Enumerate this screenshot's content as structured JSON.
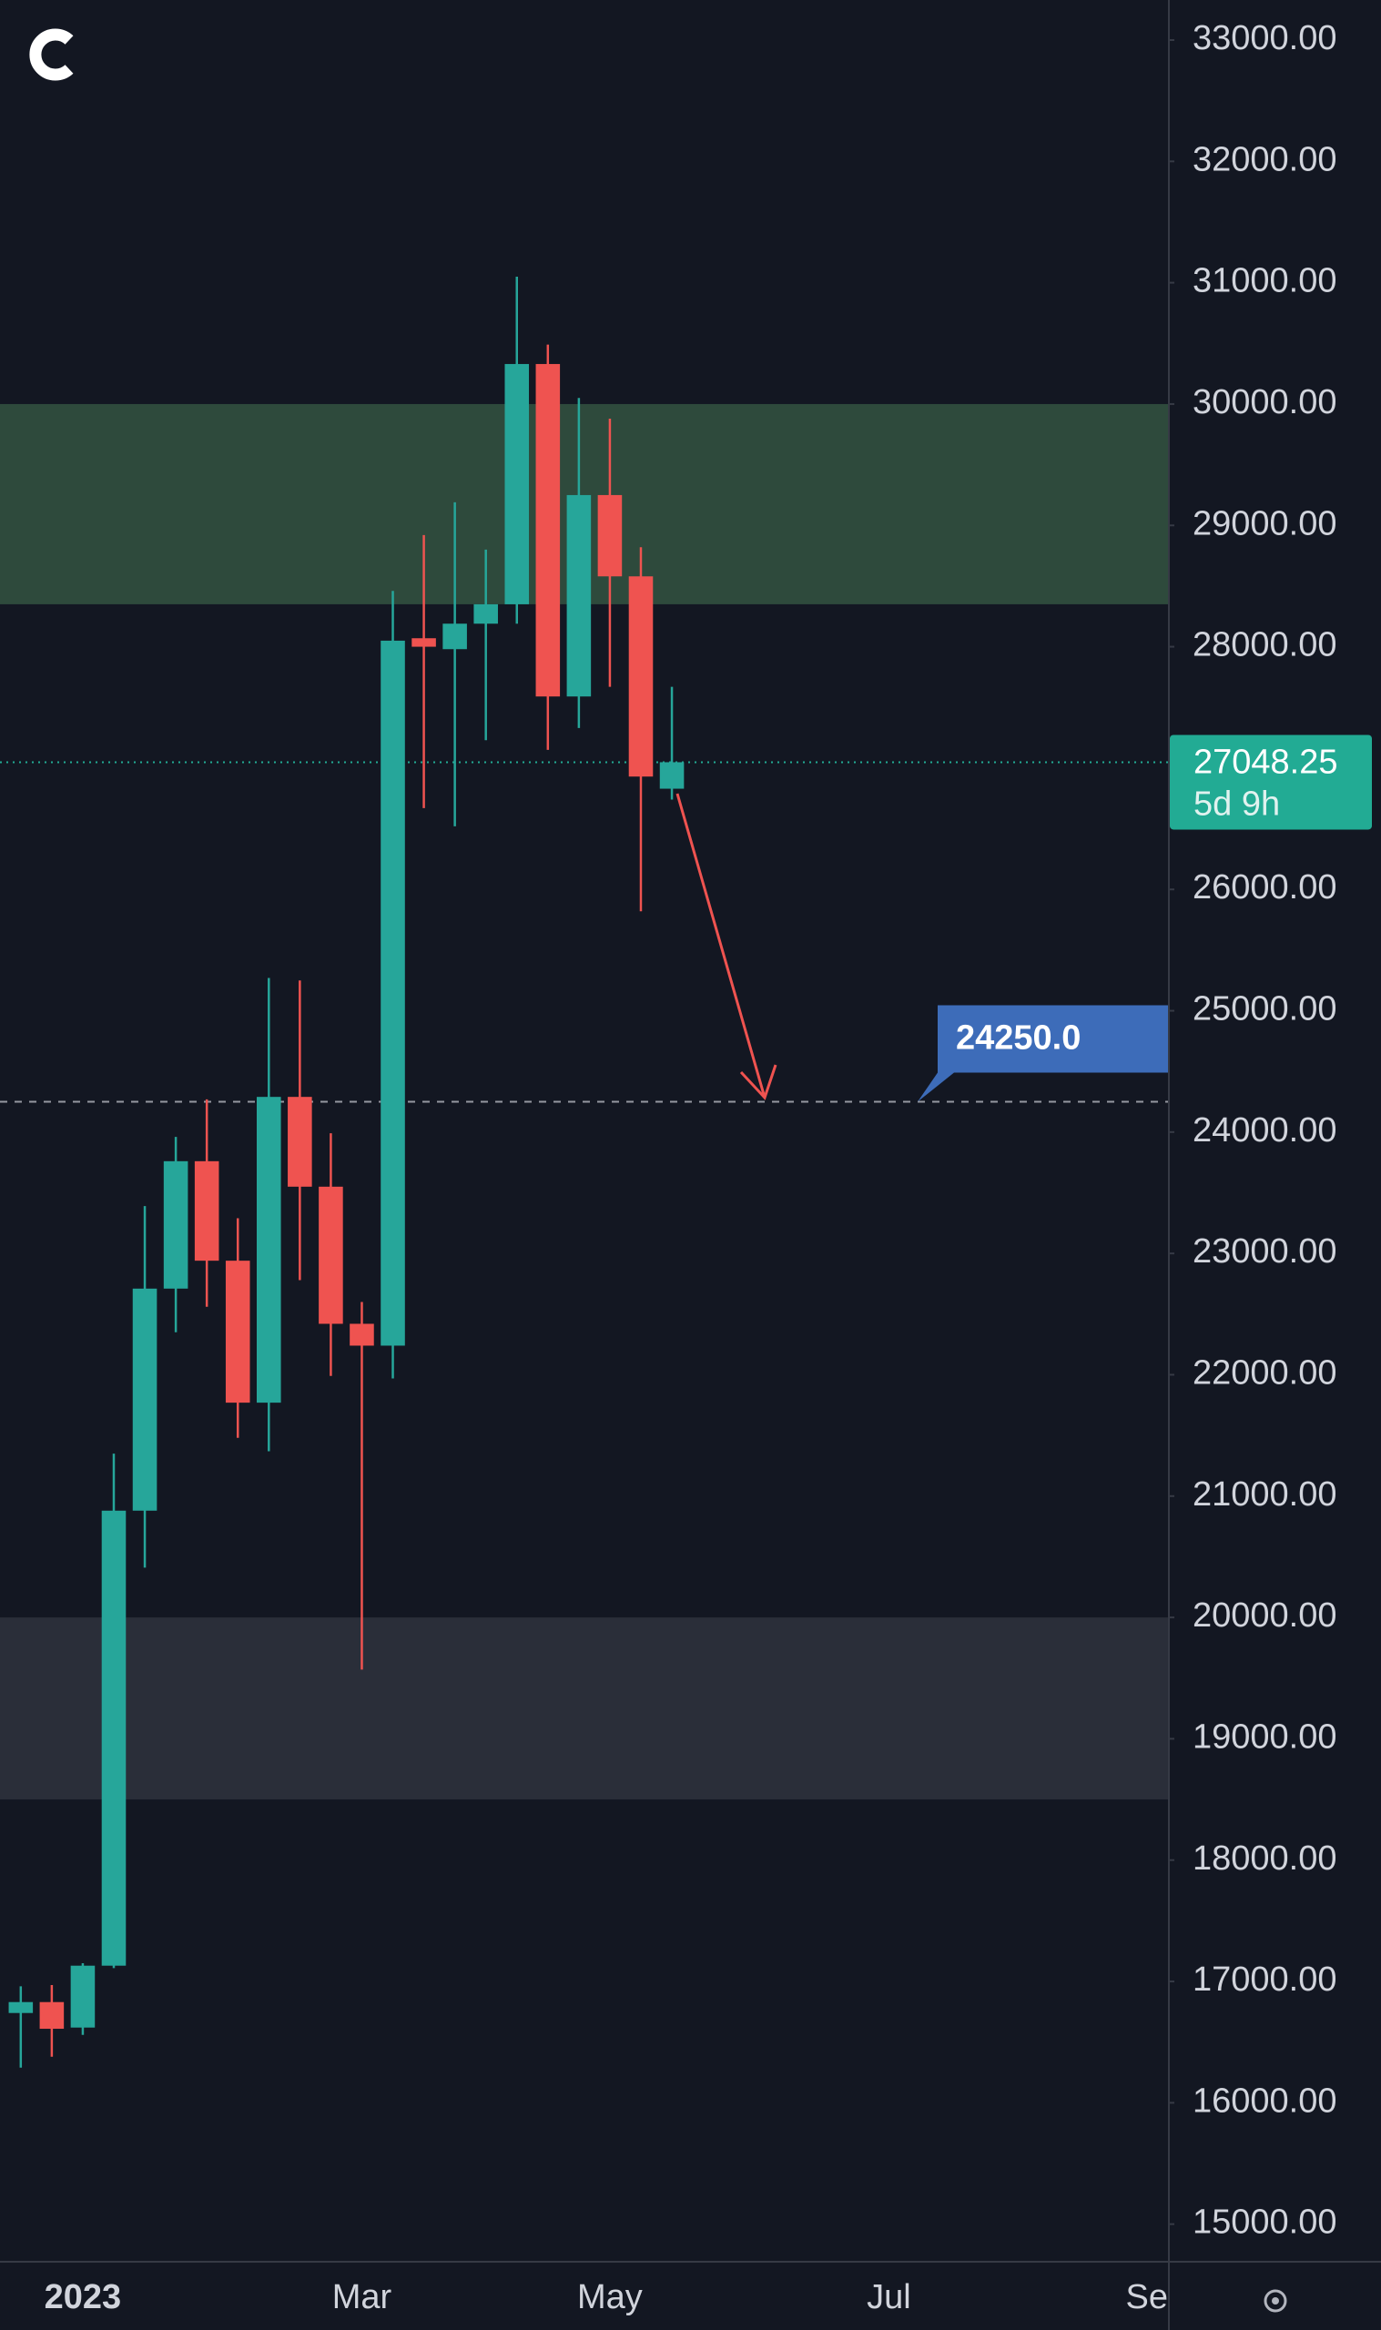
{
  "chart_data": {
    "type": "candlestick",
    "x": [
      0,
      1,
      2,
      3,
      4,
      5,
      6,
      7,
      8,
      9,
      10,
      11,
      12,
      13,
      14,
      15,
      16,
      17,
      18,
      19,
      20,
      21
    ],
    "open": [
      16740,
      16830,
      16620,
      17130,
      20880,
      22710,
      23760,
      22940,
      21770,
      24290,
      23550,
      22420,
      22240,
      28070,
      27980,
      28190,
      28350,
      30330,
      27590,
      29250,
      28580,
      26830
    ],
    "high": [
      16960,
      16970,
      17150,
      21350,
      23390,
      23960,
      24270,
      23290,
      25270,
      25250,
      23990,
      22600,
      28460,
      28920,
      29190,
      28800,
      31050,
      30490,
      30050,
      29880,
      28820,
      27670
    ],
    "low": [
      16290,
      16380,
      16560,
      17110,
      20410,
      22350,
      22560,
      21480,
      21370,
      22780,
      21990,
      19570,
      21970,
      26670,
      26520,
      27230,
      28190,
      27150,
      27330,
      27670,
      25820,
      26740
    ],
    "close": [
      16830,
      16610,
      17130,
      20880,
      22710,
      23760,
      22940,
      21770,
      24290,
      23550,
      22420,
      22240,
      28050,
      28000,
      28190,
      28350,
      30330,
      27590,
      29250,
      28580,
      26930,
      27048.25
    ],
    "up_color": "#26a69a",
    "down_color": "#ef5350",
    "xlim": [
      -0.67,
      37.03
    ],
    "ylim": [
      14690,
      33330
    ],
    "xticks": [
      {
        "value": 2,
        "label": "2023"
      },
      {
        "value": 11,
        "label": "Mar"
      },
      {
        "value": 19,
        "label": "May"
      },
      {
        "value": 28,
        "label": "Jul"
      },
      {
        "value": 37,
        "label": "Se"
      }
    ],
    "yticks": [
      {
        "value": 15000,
        "label": "15000.00"
      },
      {
        "value": 16000,
        "label": "16000.00"
      },
      {
        "value": 17000,
        "label": "17000.00"
      },
      {
        "value": 18000,
        "label": "18000.00"
      },
      {
        "value": 19000,
        "label": "19000.00"
      },
      {
        "value": 20000,
        "label": "20000.00"
      },
      {
        "value": 21000,
        "label": "21000.00"
      },
      {
        "value": 22000,
        "label": "22000.00"
      },
      {
        "value": 23000,
        "label": "23000.00"
      },
      {
        "value": 24000,
        "label": "24000.00"
      },
      {
        "value": 25000,
        "label": "25000.00"
      },
      {
        "value": 26000,
        "label": "26000.00"
      },
      {
        "value": 28000,
        "label": "28000.00"
      },
      {
        "value": 29000,
        "label": "29000.00"
      },
      {
        "value": 30000,
        "label": "30000.00"
      },
      {
        "value": 31000,
        "label": "31000.00"
      },
      {
        "value": 32000,
        "label": "32000.00"
      },
      {
        "value": 33000,
        "label": "33000.00"
      }
    ],
    "zones": [
      {
        "from": 28350,
        "to": 30000,
        "color": "#2e4a3c"
      },
      {
        "from": 18500,
        "to": 20000,
        "color": "#2a2e39"
      }
    ],
    "current_price": {
      "value": 27048.25,
      "countdown": "5d 9h",
      "color": "#22ab94"
    },
    "target": {
      "value": 24250,
      "label": "24250.0",
      "color": "#3d6cb9"
    }
  }
}
